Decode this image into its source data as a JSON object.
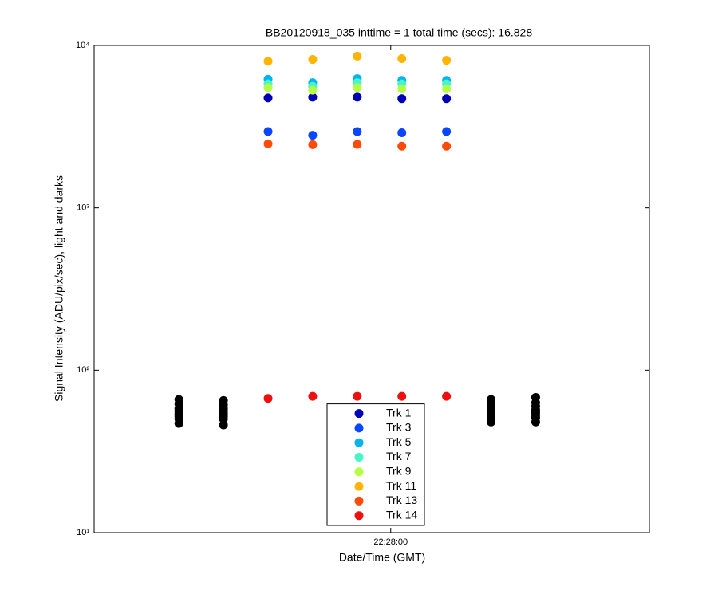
{
  "chart_data": {
    "type": "scatter",
    "title": "BB20120918_035 inttime = 1 total time (secs): 16.828",
    "xlabel": "Date/Time (GMT)",
    "ylabel": "Signal Intensity (ADU/pix/sec), light and darks",
    "yscale": "log",
    "ylim": [
      10,
      10000
    ],
    "yticks": [
      {
        "value": 10,
        "label": "10¹"
      },
      {
        "value": 100,
        "label": "10²"
      },
      {
        "value": 1000,
        "label": "10³"
      },
      {
        "value": 10000,
        "label": "10⁴"
      }
    ],
    "xlim": [
      80866.7,
      80891.6
    ],
    "xticks": [
      {
        "value": 80880,
        "label": "22:28:00"
      }
    ],
    "legend": "south",
    "series": [
      {
        "name": "Trk 1",
        "color": "#0000b4",
        "x": [
          80874.5,
          80876.5,
          80878.5,
          80880.5,
          80882.5
        ],
        "values": [
          4750,
          4800,
          4800,
          4700,
          4700
        ]
      },
      {
        "name": "Trk 3",
        "color": "#0a46ff",
        "x": [
          80874.5,
          80876.5,
          80878.5,
          80880.5,
          80882.5
        ],
        "values": [
          2950,
          2800,
          2950,
          2900,
          2950
        ]
      },
      {
        "name": "Trk 5",
        "color": "#00b4f0",
        "x": [
          80874.5,
          80876.5,
          80878.5,
          80880.5,
          80882.5
        ],
        "values": [
          6200,
          5900,
          6250,
          6100,
          6100
        ]
      },
      {
        "name": "Trk 7",
        "color": "#46f5c8",
        "x": [
          80874.5,
          80876.5,
          80878.5,
          80880.5,
          80882.5
        ],
        "values": [
          5800,
          5600,
          5900,
          5800,
          5800
        ]
      },
      {
        "name": "Trk 9",
        "color": "#b4ff46",
        "x": [
          80874.5,
          80876.5,
          80878.5,
          80880.5,
          80882.5
        ],
        "values": [
          5500,
          5300,
          5500,
          5400,
          5400
        ]
      },
      {
        "name": "Trk 11",
        "color": "#ffb400",
        "x": [
          80874.5,
          80876.5,
          80878.5,
          80880.5,
          80882.5
        ],
        "values": [
          8000,
          8200,
          8600,
          8300,
          8100
        ]
      },
      {
        "name": "Trk 13",
        "color": "#ff4b0a",
        "x": [
          80874.5,
          80876.5,
          80878.5,
          80880.5,
          80882.5
        ],
        "values": [
          2480,
          2450,
          2460,
          2400,
          2400
        ]
      },
      {
        "name": "Trk 14",
        "color": "#ee1010",
        "x": [
          80874.5,
          80876.5,
          80878.5,
          80880.5,
          80882.5
        ],
        "values": [
          67,
          69,
          69,
          69,
          69
        ]
      }
    ],
    "darks": {
      "color": "#000000",
      "x": [
        80870.5,
        80870.5,
        80870.5,
        80870.5,
        80870.5,
        80870.5,
        80870.5,
        80870.5,
        80872.5,
        80872.5,
        80872.5,
        80872.5,
        80872.5,
        80872.5,
        80872.5,
        80872.5,
        80884.5,
        80884.5,
        80884.5,
        80884.5,
        80884.5,
        80884.5,
        80884.5,
        80884.5,
        80886.5,
        80886.5,
        80886.5,
        80886.5,
        80886.5,
        80886.5,
        80886.5,
        80886.5
      ],
      "values": [
        47,
        50,
        52,
        54,
        56,
        58,
        62,
        66,
        46,
        50,
        52,
        54,
        56,
        58,
        61,
        65,
        48,
        51,
        53,
        55,
        57,
        59,
        62,
        66,
        48,
        51,
        53,
        55,
        57,
        60,
        63,
        68
      ]
    }
  }
}
